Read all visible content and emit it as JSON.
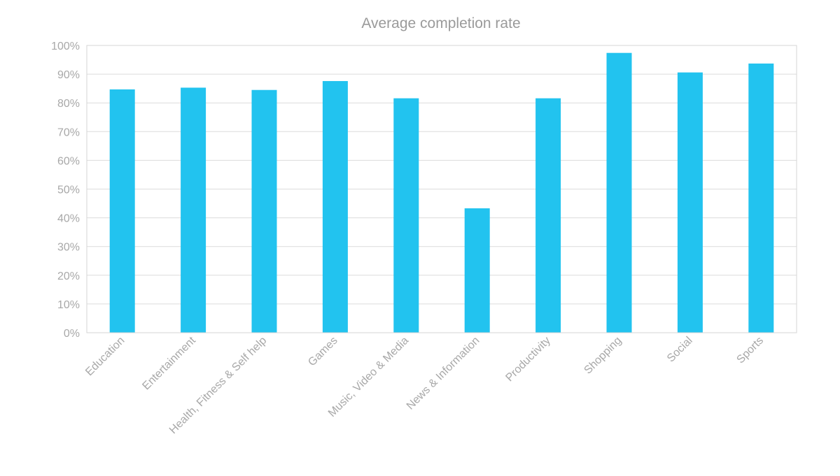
{
  "chart_data": {
    "type": "bar",
    "title": "Average completion rate",
    "xlabel": "",
    "ylabel": "",
    "ylim": [
      0,
      100
    ],
    "y_ticks": [
      "0%",
      "10%",
      "20%",
      "30%",
      "40%",
      "50%",
      "60%",
      "70%",
      "80%",
      "90%",
      "100%"
    ],
    "grid": true,
    "legend": "none",
    "categories": [
      "Education",
      "Entertainment",
      "Health, Fitness & Self help",
      "Games",
      "Music, Video & Media",
      "News & Information",
      "Productivity",
      "Shopping",
      "Social",
      "Sports"
    ],
    "values": [
      84.7,
      85.3,
      84.5,
      87.6,
      81.6,
      43.3,
      81.6,
      97.4,
      90.6,
      93.7
    ],
    "bar_color": "#22c3ef"
  }
}
